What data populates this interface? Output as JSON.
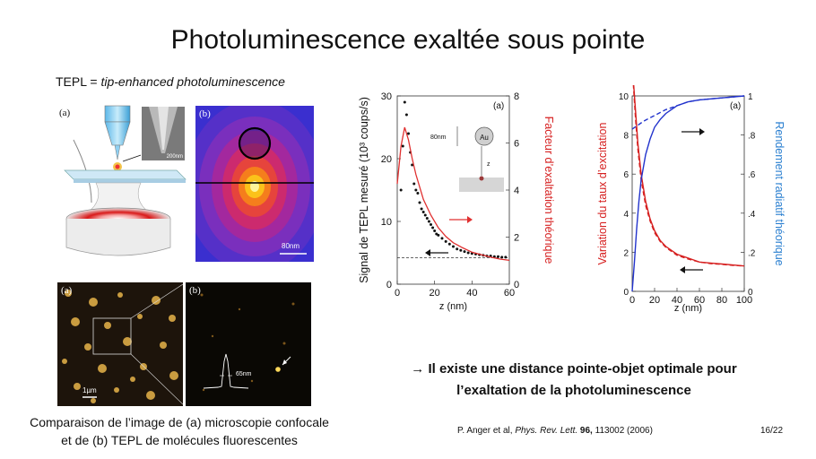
{
  "slide": {
    "title": "Photoluminescence exaltée sous pointe",
    "subtitle_prefix": "TEPL = ",
    "subtitle_italic": "tip-enhanced photoluminescence",
    "caption_line1": "Comparaison de l’image de (a) microscopie confocale",
    "caption_line2": "et de (b) TEPL de molécules fluorescentes",
    "conclusion_line1": "→ Il existe une distance pointe-objet optimale pour",
    "conclusion_line2": "l’exaltation de la photoluminescence",
    "ref_authors": "P. Anger et al, ",
    "ref_journal": "Phys. Rev. Lett.",
    "ref_volume": " 96,",
    "ref_rest": " 113002 (2006)",
    "page_number": "16/22"
  },
  "figures": {
    "setup_label": "(a)",
    "map_label": "(b)",
    "map_scale": "80nm",
    "sem_scale": "200nm",
    "confocal_label": "(a)",
    "confocal_scale": "1µm",
    "tepl_label": "(b)",
    "tepl_scale": "65nm"
  },
  "chart_data": [
    {
      "type": "scatter",
      "panel_label": "(a)",
      "xlabel": "z (nm)",
      "ylabel_left": "Signal de TEPL mesuré (10³ coups/s)",
      "ylabel_right": "Facteur d’exaltation théorique",
      "xlim": [
        0,
        60
      ],
      "ylim_left": [
        0,
        30
      ],
      "ylim_right": [
        0,
        8
      ],
      "x_ticks": [
        "0",
        "20",
        "40",
        "60"
      ],
      "y_ticks_left": [
        "0",
        "10",
        "20",
        "30"
      ],
      "y_ticks_right": [
        "0",
        "2",
        "4",
        "6",
        "8"
      ],
      "inset_labels": [
        "80nm",
        "Au",
        "z"
      ],
      "colors": {
        "measured": "#111111",
        "theory": "#e03030",
        "axis_right": "#d62020"
      },
      "background_level": 4.2,
      "series": [
        {
          "marker": "dots",
          "x": [
            2,
            3,
            4,
            5,
            6,
            7,
            8,
            9,
            10,
            11,
            12,
            13,
            14,
            15,
            16,
            17,
            18,
            19,
            20,
            21,
            22,
            24,
            26,
            28,
            30,
            32,
            34,
            36,
            38,
            40,
            42,
            44,
            46,
            48,
            50,
            52,
            54,
            56,
            58
          ],
          "y": [
            15,
            22,
            29,
            27,
            24,
            21,
            19,
            16,
            15,
            14.5,
            13,
            12,
            11.5,
            11,
            10.5,
            10,
            9.5,
            9,
            8.5,
            8,
            7.8,
            7.3,
            6.8,
            6.4,
            6,
            5.6,
            5.4,
            5.2,
            5,
            4.9,
            4.8,
            4.7,
            4.6,
            4.5,
            4.5,
            4.4,
            4.4,
            4.3,
            4.3
          ]
        },
        {
          "marker": "line",
          "x": [
            0,
            2,
            4,
            6,
            8,
            10,
            14,
            18,
            22,
            26,
            30,
            35,
            40,
            45,
            50,
            55,
            60
          ],
          "y": [
            16,
            22,
            25,
            23,
            20,
            17.5,
            13.5,
            11,
            9,
            7.6,
            6.6,
            5.8,
            5.1,
            4.7,
            4.3,
            4.0,
            3.8
          ]
        }
      ]
    },
    {
      "type": "line",
      "panel_label": "(a)",
      "xlabel": "z (nm)",
      "ylabel_left": "Variation du taux d’excitation",
      "ylabel_right": "Rendement radiatif théorique",
      "xlim": [
        0,
        100
      ],
      "ylim_left": [
        0,
        10
      ],
      "ylim_right": [
        0,
        1
      ],
      "x_ticks": [
        "0",
        "20",
        "40",
        "60",
        "80",
        "100"
      ],
      "y_ticks_left": [
        "0",
        "2",
        "4",
        "6",
        "8",
        "10"
      ],
      "y_ticks_right": [
        "0",
        ".2",
        ".4",
        ".6",
        ".8",
        "1"
      ],
      "colors": {
        "excitation": "#d62020",
        "radiative": "#2233cc",
        "axis_left": "#d62020",
        "axis_right": "#2a7fd0"
      },
      "series": [
        {
          "axis": "left",
          "style": "solid",
          "x": [
            1,
            3,
            5,
            8,
            12,
            16,
            20,
            25,
            30,
            40,
            50,
            60,
            70,
            80,
            90,
            100
          ],
          "y": [
            10.8,
            9.2,
            7.6,
            6.0,
            4.6,
            3.7,
            3.1,
            2.6,
            2.3,
            1.9,
            1.7,
            1.5,
            1.45,
            1.4,
            1.35,
            1.3
          ]
        },
        {
          "axis": "left",
          "style": "dashed",
          "x": [
            1,
            3,
            5,
            8,
            12,
            16,
            20,
            25,
            30,
            40,
            50,
            60,
            70,
            80,
            90,
            100
          ],
          "y": [
            10.6,
            8.8,
            7.3,
            5.7,
            4.4,
            3.6,
            3.0,
            2.55,
            2.25,
            1.85,
            1.65,
            1.5,
            1.42,
            1.38,
            1.33,
            1.3
          ]
        },
        {
          "axis": "right",
          "style": "solid",
          "x": [
            0,
            2,
            4,
            6,
            8,
            12,
            16,
            20,
            25,
            30,
            40,
            50,
            60,
            80,
            100
          ],
          "y": [
            0.0,
            0.15,
            0.32,
            0.46,
            0.57,
            0.7,
            0.78,
            0.84,
            0.88,
            0.91,
            0.95,
            0.97,
            0.98,
            0.99,
            1.0
          ]
        },
        {
          "axis": "right",
          "style": "dashed",
          "x": [
            0,
            5,
            10,
            20,
            30,
            40,
            50,
            60,
            80,
            100
          ],
          "y": [
            0.83,
            0.85,
            0.87,
            0.9,
            0.93,
            0.95,
            0.97,
            0.98,
            0.99,
            1.0
          ]
        }
      ]
    }
  ]
}
